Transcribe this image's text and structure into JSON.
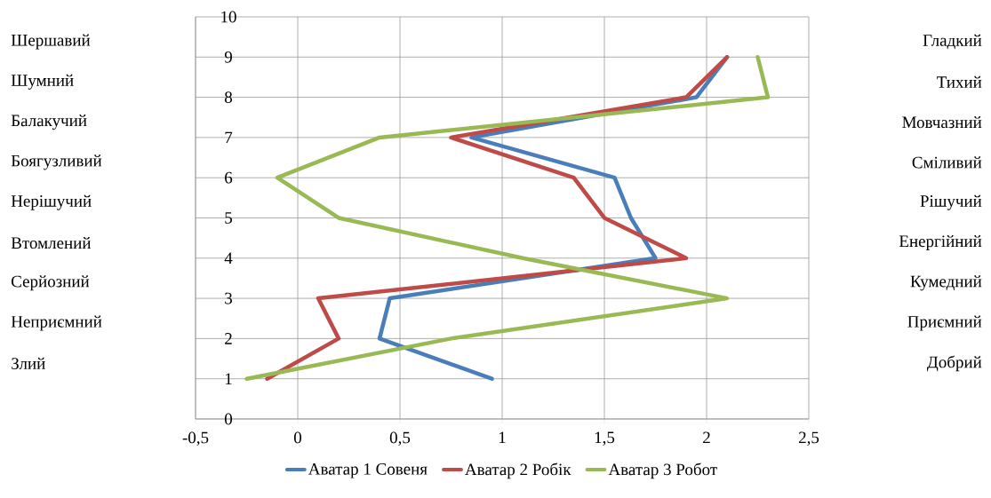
{
  "chart_data": {
    "type": "line",
    "xlim": [
      -0.5,
      2.5
    ],
    "xticks": [
      {
        "value": -0.5,
        "label": "-0,5"
      },
      0,
      {
        "value": 0.5,
        "label": "0,5"
      },
      1,
      {
        "value": 1.5,
        "label": "1,5"
      },
      2,
      {
        "value": 2.5,
        "label": "2,5"
      }
    ],
    "ylim": [
      0,
      10
    ],
    "yticks": [
      0,
      1,
      2,
      3,
      4,
      5,
      6,
      7,
      8,
      9,
      10
    ],
    "grid": true,
    "legend": "bottom",
    "marker": "none",
    "line_style": "solid",
    "series": [
      {
        "name": "Аватар 1 Совеня",
        "color": "#4a7ebb",
        "x": [
          0.95,
          0.4,
          0.45,
          1.75,
          1.63,
          1.55,
          0.85,
          1.95,
          2.1
        ],
        "values": [
          1,
          2,
          3,
          4,
          5,
          6,
          7,
          8,
          9
        ]
      },
      {
        "name": "Аватар 2 Робік",
        "color": "#be4b48",
        "x": [
          -0.15,
          0.2,
          0.1,
          1.9,
          1.5,
          1.35,
          0.75,
          1.9,
          2.1
        ],
        "values": [
          1,
          2,
          3,
          4,
          5,
          6,
          7,
          8,
          9
        ]
      },
      {
        "name": "Аватар 3 Робот",
        "color": "#98b954",
        "x": [
          -0.25,
          0.75,
          2.1,
          1.1,
          0.2,
          -0.1,
          0.4,
          2.3,
          2.25
        ],
        "values": [
          1,
          2,
          3,
          4,
          5,
          6,
          7,
          8,
          9
        ]
      }
    ],
    "annotations": [
      "Шершавий",
      "Шумний",
      "Балакучий",
      "Боягузливий",
      "Нерішучий",
      "Втомлений",
      "Серйозний",
      "Неприємний",
      "Злий",
      "Гладкий",
      "Тихий",
      "Мовчазний",
      "Сміливий",
      "Рішучий",
      "Енергійний",
      "Кумедний",
      "Приємний",
      "Добрий"
    ]
  }
}
